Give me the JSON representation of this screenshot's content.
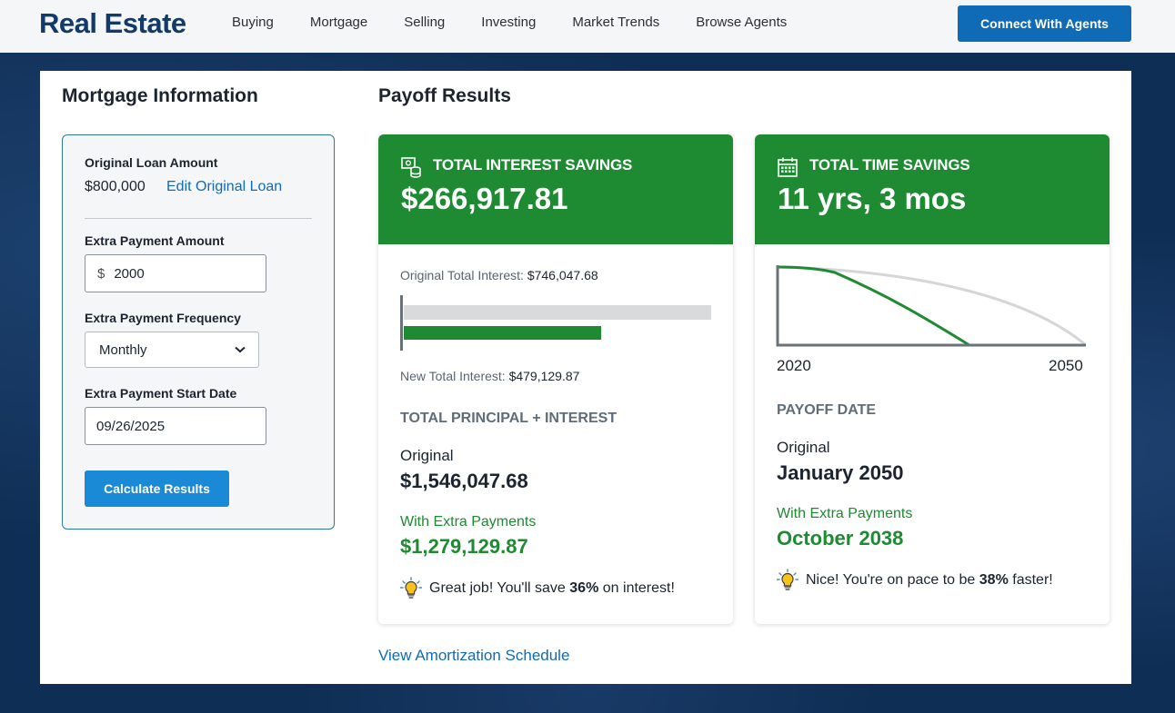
{
  "header": {
    "brand": "Real Estate",
    "nav": [
      "Buying",
      "Mortgage",
      "Selling",
      "Investing",
      "Market Trends",
      "Browse Agents"
    ],
    "cta": "Connect With Agents"
  },
  "mortgage_info": {
    "title": "Mortgage Information",
    "original_loan_label": "Original Loan Amount",
    "original_loan_value": "$800,000",
    "edit_loan_link": "Edit Original Loan",
    "extra_payment_label": "Extra Payment Amount",
    "extra_payment_prefix": "$",
    "extra_payment_value": "2000",
    "frequency_label": "Extra Payment Frequency",
    "frequency_value": "Monthly",
    "start_date_label": "Extra Payment Start Date",
    "start_date_value": "09/26/2025",
    "calculate_button": "Calculate Results"
  },
  "payoff_results": {
    "title": "Payoff Results",
    "interest_card": {
      "title": "TOTAL INTEREST SAVINGS",
      "value": "$266,917.81",
      "original_interest_label": "Original Total Interest:",
      "original_interest_value": "$746,047.68",
      "new_interest_label": "New Total Interest:",
      "new_interest_value": "$479,129.87",
      "original_interest_amount": 746047.68,
      "new_interest_amount": 479129.87,
      "subheading": "TOTAL PRINCIPAL + INTEREST",
      "original_label": "Original",
      "original_value": "$1,546,047.68",
      "extra_label": "With Extra Payments",
      "extra_value": "$1,279,129.87",
      "tip_prefix": "Great job! You'll save",
      "tip_percent": "36%",
      "tip_suffix": "on interest!"
    },
    "time_card": {
      "title": "TOTAL TIME SAVINGS",
      "value": "11 yrs, 3 mos",
      "chart_start_label": "2020",
      "chart_end_label": "2050",
      "subheading": "PAYOFF DATE",
      "original_label": "Original",
      "original_value": "January 2050",
      "extra_label": "With Extra Payments",
      "extra_value": "October 2038",
      "tip_prefix": "Nice! You're on pace to be",
      "tip_percent": "38%",
      "tip_suffix": "faster!"
    },
    "amortization_link": "View Amortization Schedule"
  },
  "colors": {
    "brand": "#123a6a",
    "accent_blue": "#0f6bb5",
    "green": "#1e8a32",
    "background": "#0f2e55"
  },
  "icons": {
    "interest_card": "money-stack-icon",
    "time_card": "calendar-icon",
    "tips": "lightbulb-icon",
    "frequency_select": "chevron-down-icon"
  }
}
